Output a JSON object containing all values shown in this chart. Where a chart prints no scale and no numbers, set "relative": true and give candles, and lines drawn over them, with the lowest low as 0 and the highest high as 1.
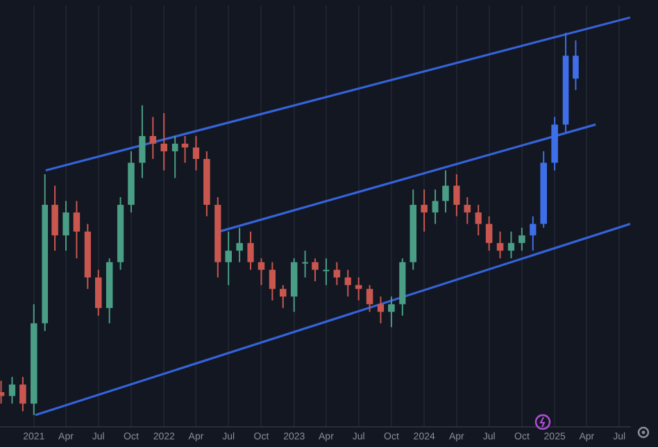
{
  "chart_data": {
    "type": "candlestick",
    "relative": true,
    "x": [
      "2020-10",
      "2020-11",
      "2020-12",
      "2021-01",
      "2021-02",
      "2021-03",
      "2021-04",
      "2021-05",
      "2021-06",
      "2021-07",
      "2021-08",
      "2021-09",
      "2021-10",
      "2021-11",
      "2021-12",
      "2022-01",
      "2022-02",
      "2022-03",
      "2022-04",
      "2022-05",
      "2022-06",
      "2022-07",
      "2022-08",
      "2022-09",
      "2022-10",
      "2022-11",
      "2022-12",
      "2023-01",
      "2023-02",
      "2023-03",
      "2023-04",
      "2023-05",
      "2023-06",
      "2023-07",
      "2023-08",
      "2023-09",
      "2023-10",
      "2023-11",
      "2023-12",
      "2024-01",
      "2024-02",
      "2024-03",
      "2024-04",
      "2024-05",
      "2024-06",
      "2024-07",
      "2024-08",
      "2024-09",
      "2024-10",
      "2024-11",
      "2024-12",
      "2025-01",
      "2025-02",
      "2025-03"
    ],
    "ohlc": [
      [
        0.06,
        0.09,
        0.03,
        0.05
      ],
      [
        0.05,
        0.1,
        0.03,
        0.08
      ],
      [
        0.08,
        0.1,
        0.01,
        0.03
      ],
      [
        0.03,
        0.29,
        0,
        0.24
      ],
      [
        0.24,
        0.63,
        0.22,
        0.55
      ],
      [
        0.55,
        0.6,
        0.43,
        0.47
      ],
      [
        0.47,
        0.56,
        0.43,
        0.53
      ],
      [
        0.53,
        0.56,
        0.41,
        0.48
      ],
      [
        0.48,
        0.5,
        0.33,
        0.36
      ],
      [
        0.36,
        0.38,
        0.26,
        0.28
      ],
      [
        0.28,
        0.41,
        0.24,
        0.4
      ],
      [
        0.4,
        0.57,
        0.38,
        0.55
      ],
      [
        0.55,
        0.69,
        0.53,
        0.66
      ],
      [
        0.66,
        0.81,
        0.62,
        0.73
      ],
      [
        0.73,
        0.78,
        0.67,
        0.71
      ],
      [
        0.71,
        0.79,
        0.64,
        0.69
      ],
      [
        0.69,
        0.73,
        0.62,
        0.71
      ],
      [
        0.71,
        0.73,
        0.66,
        0.7
      ],
      [
        0.7,
        0.73,
        0.64,
        0.67
      ],
      [
        0.67,
        0.69,
        0.52,
        0.55
      ],
      [
        0.55,
        0.57,
        0.36,
        0.4
      ],
      [
        0.4,
        0.48,
        0.34,
        0.43
      ],
      [
        0.43,
        0.49,
        0.4,
        0.45
      ],
      [
        0.45,
        0.48,
        0.38,
        0.4
      ],
      [
        0.4,
        0.41,
        0.34,
        0.38
      ],
      [
        0.38,
        0.4,
        0.3,
        0.33
      ],
      [
        0.33,
        0.34,
        0.28,
        0.31
      ],
      [
        0.31,
        0.41,
        0.27,
        0.4
      ],
      [
        0.4,
        0.43,
        0.36,
        0.4
      ],
      [
        0.4,
        0.41,
        0.35,
        0.38
      ],
      [
        0.38,
        0.41,
        0.34,
        0.38
      ],
      [
        0.38,
        0.4,
        0.34,
        0.36
      ],
      [
        0.36,
        0.38,
        0.31,
        0.34
      ],
      [
        0.34,
        0.36,
        0.3,
        0.33
      ],
      [
        0.33,
        0.34,
        0.27,
        0.29
      ],
      [
        0.29,
        0.31,
        0.24,
        0.27
      ],
      [
        0.27,
        0.31,
        0.23,
        0.29
      ],
      [
        0.29,
        0.41,
        0.26,
        0.4
      ],
      [
        0.4,
        0.59,
        0.38,
        0.55
      ],
      [
        0.55,
        0.59,
        0.48,
        0.53
      ],
      [
        0.53,
        0.59,
        0.5,
        0.56
      ],
      [
        0.56,
        0.64,
        0.53,
        0.6
      ],
      [
        0.6,
        0.63,
        0.52,
        0.55
      ],
      [
        0.55,
        0.57,
        0.5,
        0.53
      ],
      [
        0.53,
        0.55,
        0.47,
        0.5
      ],
      [
        0.5,
        0.52,
        0.43,
        0.45
      ],
      [
        0.45,
        0.48,
        0.41,
        0.43
      ],
      [
        0.43,
        0.48,
        0.41,
        0.45
      ],
      [
        0.45,
        0.49,
        0.43,
        0.47
      ],
      [
        0.47,
        0.52,
        0.43,
        0.5
      ],
      [
        0.5,
        0.69,
        0.49,
        0.66
      ],
      [
        0.66,
        0.78,
        0.64,
        0.76
      ],
      [
        0.76,
        1,
        0.74,
        0.94
      ],
      [
        0.94,
        0.98,
        0.85,
        0.88
      ]
    ],
    "colors": [
      "#c9574f",
      "#4a9e85",
      "#c9574f",
      "#4a9e85",
      "#4a9e85",
      "#c9574f",
      "#4a9e85",
      "#c9574f",
      "#c9574f",
      "#c9574f",
      "#4a9e85",
      "#4a9e85",
      "#4a9e85",
      "#4a9e85",
      "#c9574f",
      "#c9574f",
      "#4a9e85",
      "#c9574f",
      "#c9574f",
      "#c9574f",
      "#c9574f",
      "#4a9e85",
      "#4a9e85",
      "#c9574f",
      "#c9574f",
      "#c9574f",
      "#c9574f",
      "#4a9e85",
      "#4a9e85",
      "#c9574f",
      "#4a9e85",
      "#c9574f",
      "#c9574f",
      "#c9574f",
      "#c9574f",
      "#c9574f",
      "#4a9e85",
      "#4a9e85",
      "#4a9e85",
      "#c9574f",
      "#4a9e85",
      "#4a9e85",
      "#c9574f",
      "#c9574f",
      "#c9574f",
      "#c9574f",
      "#c9574f",
      "#4a9e85",
      "#4a9e85",
      "#3f6fe8",
      "#3f6fe8",
      "#3f6fe8",
      "#3f6fe8",
      "#3f6fe8"
    ],
    "series": [
      {
        "type": "line",
        "color": "#3563d9",
        "x": [
          "2021-02-03",
          "2025-08-01"
        ],
        "values": [
          0.64,
          1.04
        ]
      },
      {
        "type": "line",
        "color": "#3563d9",
        "x": [
          "2022-06-05",
          "2025-04-26"
        ],
        "values": [
          0.48,
          0.76
        ]
      },
      {
        "type": "line",
        "color": "#3563d9",
        "x": [
          "2021-01-05",
          "2025-08-01"
        ],
        "values": [
          0,
          0.5
        ]
      }
    ],
    "xlim": [
      "2020-09-28",
      "2025-08-01"
    ],
    "xticks": [
      {
        "value": "2021-01-01",
        "label": "2021"
      },
      {
        "value": "2021-04-01",
        "label": "Apr"
      },
      {
        "value": "2021-07-01",
        "label": "Jul"
      },
      {
        "value": "2021-10-01",
        "label": "Oct"
      },
      {
        "value": "2022-01-01",
        "label": "2022"
      },
      {
        "value": "2022-04-01",
        "label": "Apr"
      },
      {
        "value": "2022-07-01",
        "label": "Jul"
      },
      {
        "value": "2022-10-01",
        "label": "Oct"
      },
      {
        "value": "2023-01-01",
        "label": "2023"
      },
      {
        "value": "2023-04-01",
        "label": "Apr"
      },
      {
        "value": "2023-07-01",
        "label": "Jul"
      },
      {
        "value": "2023-10-01",
        "label": "Oct"
      },
      {
        "value": "2024-01-01",
        "label": "2024"
      },
      {
        "value": "2024-04-01",
        "label": "Apr"
      },
      {
        "value": "2024-07-01",
        "label": "Jul"
      },
      {
        "value": "2024-10-01",
        "label": "Oct"
      },
      {
        "value": "2025-01-01",
        "label": "2025"
      },
      {
        "value": "2025-04-01",
        "label": "Apr"
      },
      {
        "value": "2025-07-01",
        "label": "Jul"
      }
    ],
    "grid": "x",
    "tick_labels": "x"
  }
}
